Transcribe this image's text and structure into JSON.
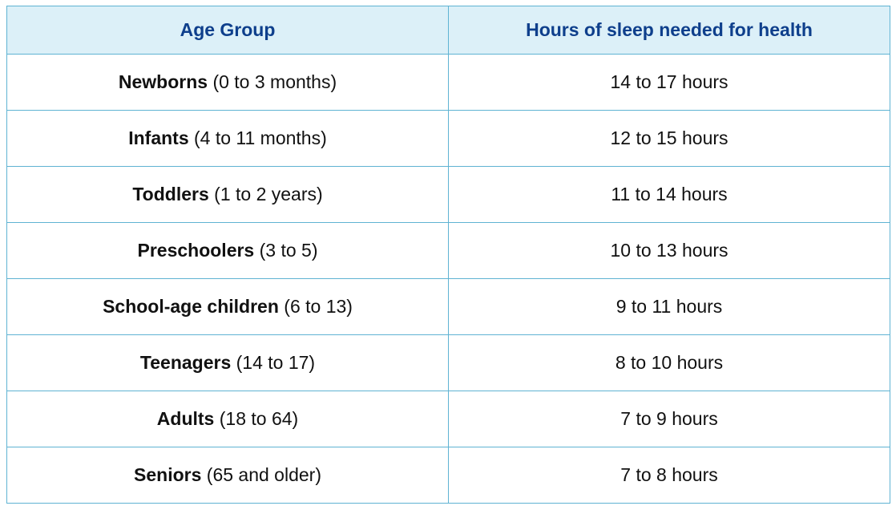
{
  "table": {
    "headers": [
      "Age Group",
      "Hours of sleep needed for health"
    ],
    "rows": [
      {
        "group": "Newborns",
        "range": "(0 to 3 months)",
        "hours": "14 to 17 hours"
      },
      {
        "group": "Infants",
        "range": "(4 to 11 months)",
        "hours": "12 to 15 hours"
      },
      {
        "group": "Toddlers",
        "range": "(1 to 2 years)",
        "hours": "11 to 14 hours"
      },
      {
        "group": "Preschoolers",
        "range": "(3 to 5)",
        "hours": "10 to 13 hours"
      },
      {
        "group": "School-age children",
        "range": "(6 to 13)",
        "hours": "9 to 11 hours"
      },
      {
        "group": "Teenagers",
        "range": "(14 to 17)",
        "hours": "8 to 10 hours"
      },
      {
        "group": "Adults",
        "range": "(18 to 64)",
        "hours": "7 to 9 hours"
      },
      {
        "group": "Seniors",
        "range": "(65 and older)",
        "hours": "7 to 8 hours"
      }
    ]
  },
  "colors": {
    "header_background": "#dcf0f8",
    "header_text": "#0e3f8c",
    "border": "#5fb3d3",
    "body_text": "#111111"
  }
}
